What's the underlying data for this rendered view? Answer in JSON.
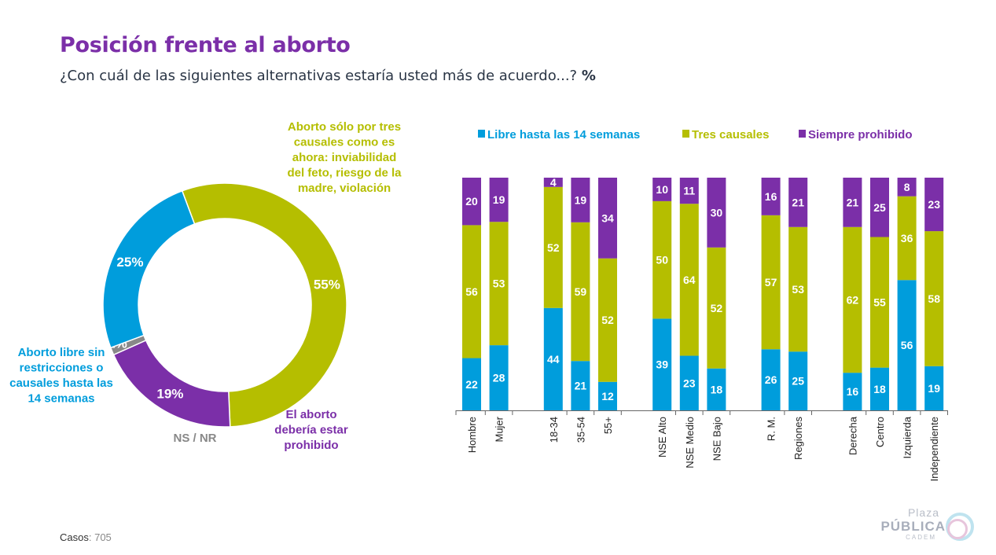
{
  "header": {
    "title": "Posición frente al aborto",
    "subtitle": "¿Con cuál de las siguientes alternativas estaría usted más de acuerdo...?",
    "subtitle_unit": "%"
  },
  "footer": {
    "cases_label": "Casos",
    "cases_value": ": 705"
  },
  "logo": {
    "line1": "Plaza",
    "line2": "PÚBLICA",
    "line3": "CADEM"
  },
  "colors": {
    "libre": "#009ddc",
    "tres": "#b5be00",
    "prohibido": "#7b2fa8",
    "nsnr": "#888888"
  },
  "chart_data": [
    {
      "type": "pie",
      "slices": [
        {
          "key": "tres",
          "value": 55,
          "label": "55%",
          "name_lines": [
            "Aborto sólo por tres",
            "causales como es",
            "ahora: inviabilidad",
            "del feto, riesgo de la",
            "madre, violación"
          ]
        },
        {
          "key": "prohibido",
          "value": 19,
          "label": "19%",
          "name_lines": [
            "El aborto",
            "debería estar",
            "prohibido"
          ]
        },
        {
          "key": "nsnr",
          "value": 1,
          "label": "1%",
          "name_lines": [
            "NS / NR"
          ]
        },
        {
          "key": "libre",
          "value": 25,
          "label": "25%",
          "name_lines": [
            "Aborto libre sin",
            "restricciones o",
            "causales hasta las",
            "14 semanas"
          ]
        }
      ]
    },
    {
      "type": "bar",
      "stacked": true,
      "legend_position": "top",
      "series": [
        {
          "key": "libre",
          "name": "Libre hasta las 14 semanas"
        },
        {
          "key": "tres",
          "name": "Tres causales"
        },
        {
          "key": "prohibido",
          "name": "Siempre prohibido"
        }
      ],
      "groups": [
        {
          "categories": [
            {
              "label": "Hombre",
              "values": [
                22,
                56,
                20
              ]
            },
            {
              "label": "Mujer",
              "values": [
                28,
                53,
                19
              ]
            }
          ]
        },
        {
          "categories": [
            {
              "label": "18-34",
              "values": [
                44,
                52,
                4
              ]
            },
            {
              "label": "35-54",
              "values": [
                21,
                59,
                19
              ]
            },
            {
              "label": "55+",
              "values": [
                12,
                52,
                34
              ]
            }
          ]
        },
        {
          "categories": [
            {
              "label": "NSE Alto",
              "values": [
                39,
                50,
                10
              ]
            },
            {
              "label": "NSE Medio",
              "values": [
                23,
                64,
                11
              ]
            },
            {
              "label": "NSE Bajo",
              "values": [
                18,
                52,
                30
              ]
            }
          ]
        },
        {
          "categories": [
            {
              "label": "R. M.",
              "values": [
                26,
                57,
                16
              ]
            },
            {
              "label": "Regiones",
              "values": [
                25,
                53,
                21
              ]
            }
          ]
        },
        {
          "categories": [
            {
              "label": "Derecha",
              "values": [
                16,
                62,
                21
              ]
            },
            {
              "label": "Centro",
              "values": [
                18,
                55,
                25
              ]
            },
            {
              "label": "Izquierda",
              "values": [
                56,
                36,
                8
              ]
            },
            {
              "label": "Independiente",
              "values": [
                19,
                58,
                23
              ]
            }
          ]
        }
      ]
    }
  ]
}
